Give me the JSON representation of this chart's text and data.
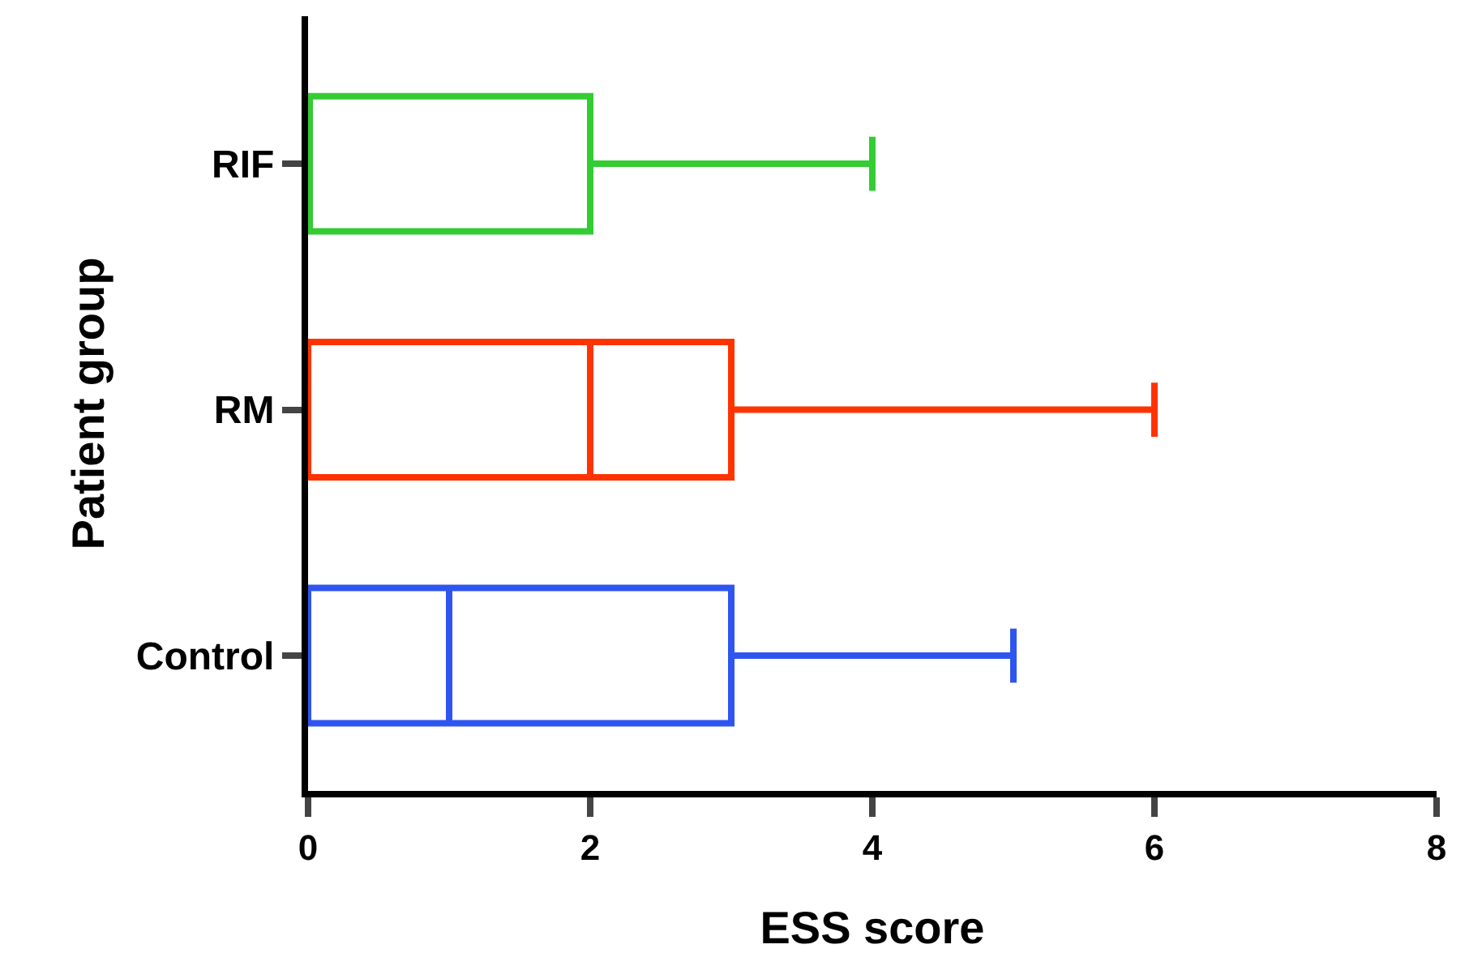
{
  "chart_data": {
    "type": "box",
    "orientation": "horizontal",
    "xlabel": "ESS score",
    "ylabel": "Patient group",
    "categories": [
      "RIF",
      "RM",
      "Control"
    ],
    "boxes": [
      {
        "low": 0,
        "q1": 0,
        "median": 0,
        "q3": 2,
        "high": 4
      },
      {
        "low": 0,
        "q1": 0,
        "median": 2,
        "q3": 3,
        "high": 6
      },
      {
        "low": 0,
        "q1": 0,
        "median": 1,
        "q3": 3,
        "high": 5
      }
    ],
    "colors": [
      "#33cc33",
      "#ff3300",
      "#2f55f0"
    ],
    "xlim": [
      0,
      8
    ],
    "xticks": [
      0,
      2,
      4,
      6,
      8
    ],
    "grid": false
  }
}
